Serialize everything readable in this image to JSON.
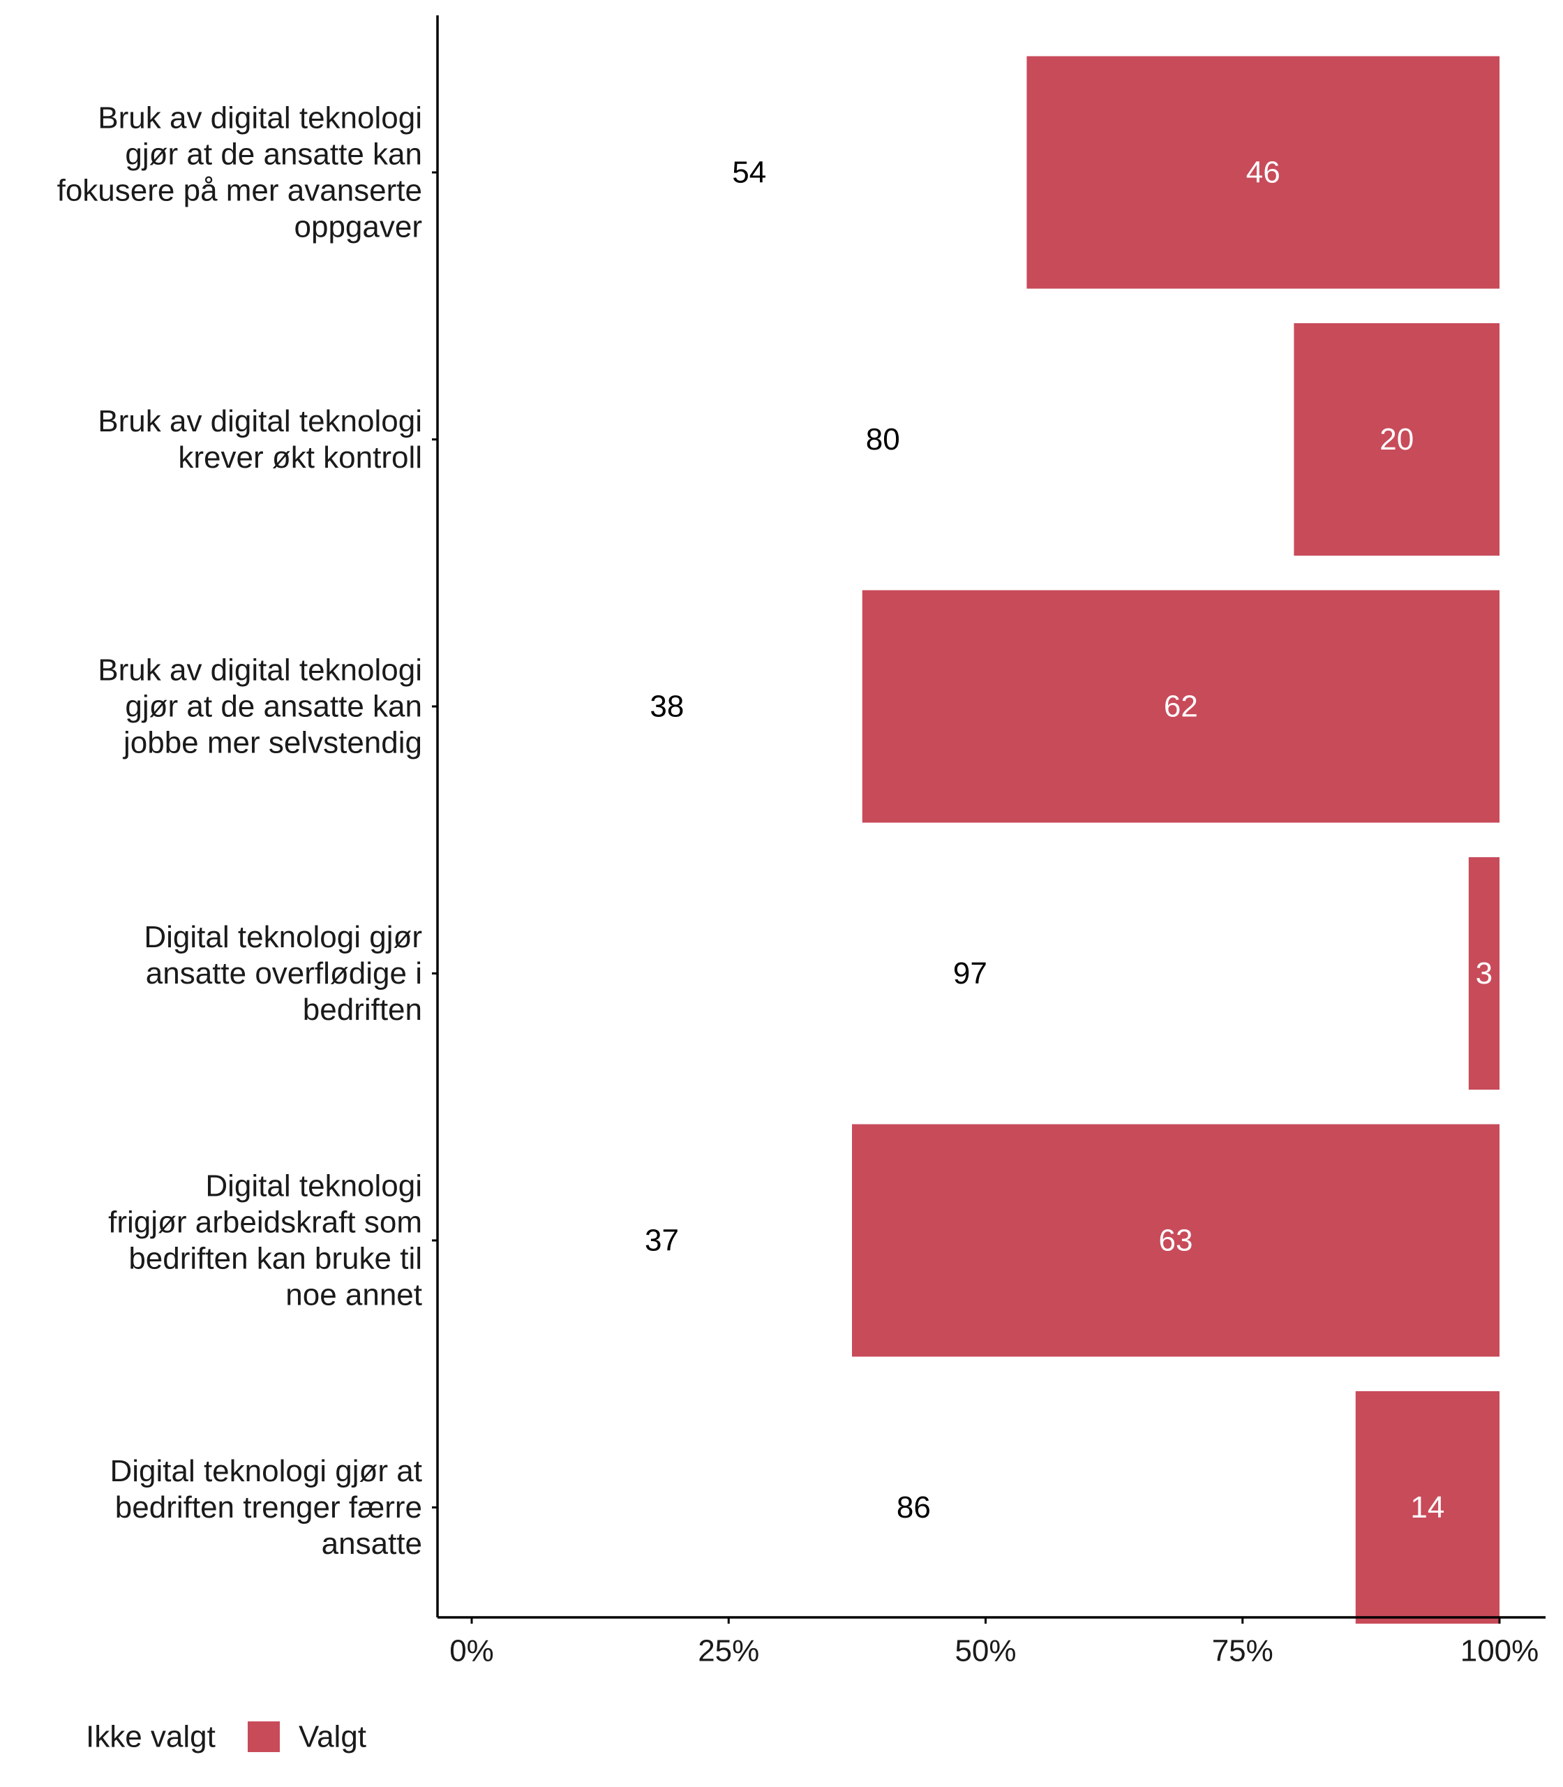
{
  "chart_data": {
    "type": "bar",
    "orientation": "horizontal",
    "stacked": true,
    "categories": [
      [
        "Bruk av digital teknologi",
        "gjør at de ansatte kan",
        "fokusere på mer avanserte",
        "oppgaver"
      ],
      [
        "Bruk av digital teknologi",
        "krever økt kontroll"
      ],
      [
        "Bruk av digital teknologi",
        "gjør at de ansatte kan",
        "jobbe mer selvstendig"
      ],
      [
        "Digital teknologi gjør",
        "ansatte overflødige i",
        "bedriften"
      ],
      [
        "Digital teknologi",
        "frigjør arbeidskraft som",
        "bedriften kan bruke til",
        "noe annet"
      ],
      [
        "Digital teknologi gjør at",
        "bedriften trenger færre",
        "ansatte"
      ]
    ],
    "series": [
      {
        "name": "Ikke valgt",
        "color": "#ffffff",
        "values": [
          54,
          80,
          38,
          97,
          37,
          86
        ]
      },
      {
        "name": "Valgt",
        "color": "#c84b5a",
        "values": [
          46,
          20,
          62,
          3,
          63,
          14
        ]
      }
    ],
    "xlim": [
      0,
      100
    ],
    "x_ticks": [
      "0%",
      "25%",
      "50%",
      "75%",
      "100%"
    ],
    "grid": false,
    "legend_position": "bottom-left"
  }
}
